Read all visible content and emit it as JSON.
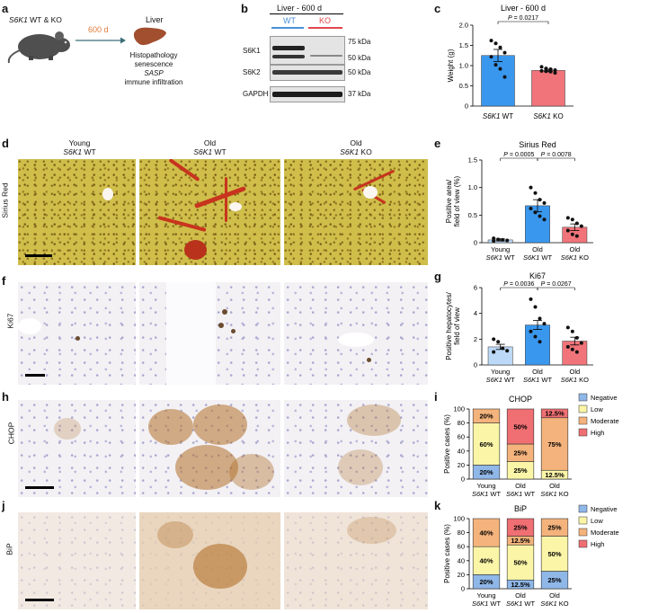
{
  "panel_letters": {
    "a": "a",
    "b": "b",
    "c": "c",
    "d": "d",
    "e": "e",
    "f": "f",
    "g": "g",
    "h": "h",
    "i": "i",
    "j": "j",
    "k": "k"
  },
  "panel_a": {
    "mouse_label_gene": "S6K1",
    "mouse_label_rest": " WT & KO",
    "timepoint": "600 d",
    "organ": "Liver",
    "readouts": [
      "Histopathology",
      "senescence",
      "SASP",
      "immune infiltration"
    ],
    "colors": {
      "arrow": "#3b6f7a",
      "timepoint": "#e07b39",
      "liver": "#a24f2f",
      "mouse": "#4a4a4a"
    }
  },
  "panel_b": {
    "title": "Liver - 600 d",
    "wt_label": "WT",
    "ko_label": "KO",
    "rows": [
      "S6K1",
      "S6K2",
      "GAPDH"
    ],
    "markers": [
      "75 kDa",
      "50 kDa",
      "50 kDa",
      "37 kDa"
    ],
    "colors": {
      "wt": "#4a90d9",
      "ko": "#e0474c"
    }
  },
  "row_labels": {
    "d": "Sirius Red",
    "f": "Ki67",
    "h": "CHOP",
    "j": "BiP"
  },
  "column_headers": {
    "young": {
      "line1": "Young",
      "gene": "S6K1",
      "rest": " WT"
    },
    "old_wt": {
      "line1": "Old",
      "gene": "S6K1",
      "rest": " WT"
    },
    "old_ko": {
      "line1": "Old",
      "gene": "S6K1",
      "rest": " KO"
    }
  },
  "group_labels": {
    "young_wt": {
      "line1": "Young",
      "gene": "S6K1",
      "rest": " WT"
    },
    "old_wt": {
      "line1": "Old",
      "gene": "S6K1",
      "rest": " WT"
    },
    "old_ko": {
      "line1": "Old",
      "gene": "S6K1",
      "rest": " KO"
    }
  },
  "chart_data": [
    {
      "id": "c",
      "type": "bar",
      "title": "Liver - 600 d",
      "ylabel": "Weight (g)",
      "ylim": [
        0,
        2.0
      ],
      "yticks": [
        "0",
        "0.5",
        "1.0",
        "1.5",
        "2.0"
      ],
      "categories": [
        {
          "gene": "S6K1",
          "rest": " WT"
        },
        {
          "gene": "S6K1",
          "rest": " KO"
        }
      ],
      "values": [
        1.25,
        0.88
      ],
      "errors": [
        0.15,
        0.03
      ],
      "points": [
        [
          1.62,
          1.55,
          1.45,
          1.32,
          1.22,
          1.02,
          0.92,
          0.72
        ],
        [
          0.97,
          0.93,
          0.91,
          0.89,
          0.87,
          0.86,
          0.85,
          0.82
        ]
      ],
      "colors": [
        "#3a97ee",
        "#f0747a"
      ],
      "stats": [
        {
          "text": "P = 0.0217",
          "from": 0,
          "to": 1
        }
      ]
    },
    {
      "id": "e",
      "type": "bar",
      "title": "Sirius Red",
      "ylabel_lines": [
        "Positive area/",
        "field of view (%)"
      ],
      "ylim": [
        0,
        1.5
      ],
      "yticks": [
        "0",
        "0.5",
        "1.0",
        "1.5"
      ],
      "values": [
        0.05,
        0.67,
        0.28
      ],
      "errors": [
        0.02,
        0.11,
        0.06
      ],
      "points": [
        [
          0.08,
          0.06,
          0.05,
          0.04,
          0.03
        ],
        [
          1.0,
          0.9,
          0.78,
          0.72,
          0.62,
          0.55,
          0.48,
          0.42
        ],
        [
          0.45,
          0.42,
          0.35,
          0.3,
          0.22,
          0.15,
          0.12
        ]
      ],
      "colors": [
        "#bcd9f7",
        "#3a97ee",
        "#f0747a"
      ],
      "stats": [
        {
          "text": "P = 0.0005",
          "from": 0,
          "to": 1
        },
        {
          "text": "P = 0.0078",
          "from": 1,
          "to": 2
        }
      ]
    },
    {
      "id": "g",
      "type": "bar",
      "title": "Ki67",
      "ylabel_lines": [
        "Positive hepatocytes/",
        "field of view"
      ],
      "ylim": [
        0,
        6
      ],
      "yticks": [
        "0",
        "2",
        "4",
        "6"
      ],
      "values": [
        1.4,
        3.1,
        1.85
      ],
      "errors": [
        0.2,
        0.35,
        0.3
      ],
      "points": [
        [
          2.0,
          1.8,
          1.3,
          1.1,
          1.0
        ],
        [
          5.1,
          4.5,
          3.6,
          3.2,
          2.6,
          2.2,
          1.8
        ],
        [
          2.9,
          2.6,
          2.1,
          1.7,
          1.4,
          1.2,
          1.0
        ]
      ],
      "colors": [
        "#bcd9f7",
        "#3a97ee",
        "#f0747a"
      ],
      "stats": [
        {
          "text": "P = 0.0036",
          "from": 0,
          "to": 1
        },
        {
          "text": "P = 0.0267",
          "from": 1,
          "to": 2
        }
      ]
    },
    {
      "id": "i",
      "type": "bar",
      "stacked": true,
      "title": "CHOP",
      "ylabel": "Positive cases (%)",
      "ylim": [
        0,
        100
      ],
      "yticks": [
        "0",
        "20",
        "40",
        "60",
        "80",
        "100"
      ],
      "series": [
        {
          "name": "Negative",
          "values": [
            20,
            0,
            0
          ],
          "labels": [
            "20%",
            "",
            ""
          ]
        },
        {
          "name": "Low",
          "values": [
            60,
            25,
            12.5
          ],
          "labels": [
            "60%",
            "25%",
            "12.5%"
          ]
        },
        {
          "name": "Moderate",
          "values": [
            20,
            25,
            75
          ],
          "labels": [
            "20%",
            "25%",
            "75%"
          ]
        },
        {
          "name": "High",
          "values": [
            0,
            50,
            12.5
          ],
          "labels": [
            "",
            "50%",
            "12.5%"
          ]
        }
      ],
      "legend_position": "right"
    },
    {
      "id": "k",
      "type": "bar",
      "stacked": true,
      "title": "BiP",
      "ylabel": "Positive cases (%)",
      "ylim": [
        0,
        100
      ],
      "yticks": [
        "0",
        "20",
        "40",
        "60",
        "80",
        "100"
      ],
      "series": [
        {
          "name": "Negative",
          "values": [
            20,
            12.5,
            25
          ],
          "labels": [
            "20%",
            "12.5%",
            "25%"
          ]
        },
        {
          "name": "Low",
          "values": [
            40,
            50,
            50
          ],
          "labels": [
            "40%",
            "50%",
            "50%"
          ]
        },
        {
          "name": "Moderate",
          "values": [
            40,
            12.5,
            25
          ],
          "labels": [
            "40%",
            "12.5%",
            "25%"
          ]
        },
        {
          "name": "High",
          "values": [
            0,
            25,
            0
          ],
          "labels": [
            "",
            "25%",
            ""
          ]
        }
      ],
      "legend_position": "right"
    }
  ],
  "stack_colors": {
    "Negative": "#8fb7e8",
    "Low": "#fbf5a8",
    "Moderate": "#f4b37c",
    "High": "#ef6f73"
  }
}
